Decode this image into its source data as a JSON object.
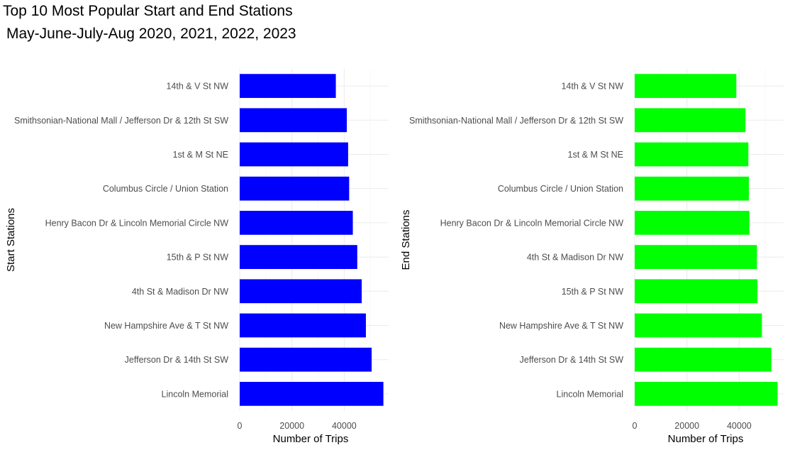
{
  "title": {
    "line1": "Top 10 Most Popular Start and End Stations",
    "line2": "May-June-July-Aug 2020, 2021, 2022, 2023"
  },
  "chart_data": [
    {
      "type": "bar",
      "orientation": "horizontal",
      "categories": [
        "14th & V St NW",
        "Smithsonian-National Mall / Jefferson Dr & 12th St SW",
        "1st & M St NE",
        "Columbus Circle / Union Station",
        "Henry Bacon Dr & Lincoln Memorial Circle NW",
        "15th & P St NW",
        "4th St & Madison Dr NW",
        "New Hampshire Ave & T St NW",
        "Jefferson Dr & 14th St SW",
        "Lincoln Memorial"
      ],
      "values": [
        36800,
        41000,
        41500,
        41900,
        43300,
        45000,
        46700,
        48300,
        50500,
        55000
      ],
      "bar_color": "#0000ff",
      "xlabel": "Number of Trips",
      "ylabel": "Start Stations",
      "xlim": [
        0,
        57000
      ],
      "xticks": [
        0,
        20000,
        40000
      ],
      "xtick_labels": [
        "0",
        "20000",
        "40000"
      ],
      "grid": true,
      "legend": "none"
    },
    {
      "type": "bar",
      "orientation": "horizontal",
      "categories": [
        "14th & V St NW",
        "Smithsonian-National Mall / Jefferson Dr & 12th St SW",
        "1st & M St NE",
        "Columbus Circle / Union Station",
        "Henry Bacon Dr & Lincoln Memorial Circle NW",
        "4th St & Madison Dr NW",
        "15th & P St NW",
        "New Hampshire Ave & T St NW",
        "Jefferson Dr & 14th St SW",
        "Lincoln Memorial"
      ],
      "values": [
        38900,
        42400,
        43500,
        43700,
        43900,
        46800,
        47000,
        48700,
        52300,
        54700
      ],
      "bar_color": "#00ff00",
      "xlabel": "Number of Trips",
      "ylabel": "End Stations",
      "xlim": [
        0,
        57000
      ],
      "xticks": [
        0,
        20000,
        40000
      ],
      "xtick_labels": [
        "0",
        "20000",
        "40000"
      ],
      "grid": true,
      "legend": "none"
    }
  ]
}
